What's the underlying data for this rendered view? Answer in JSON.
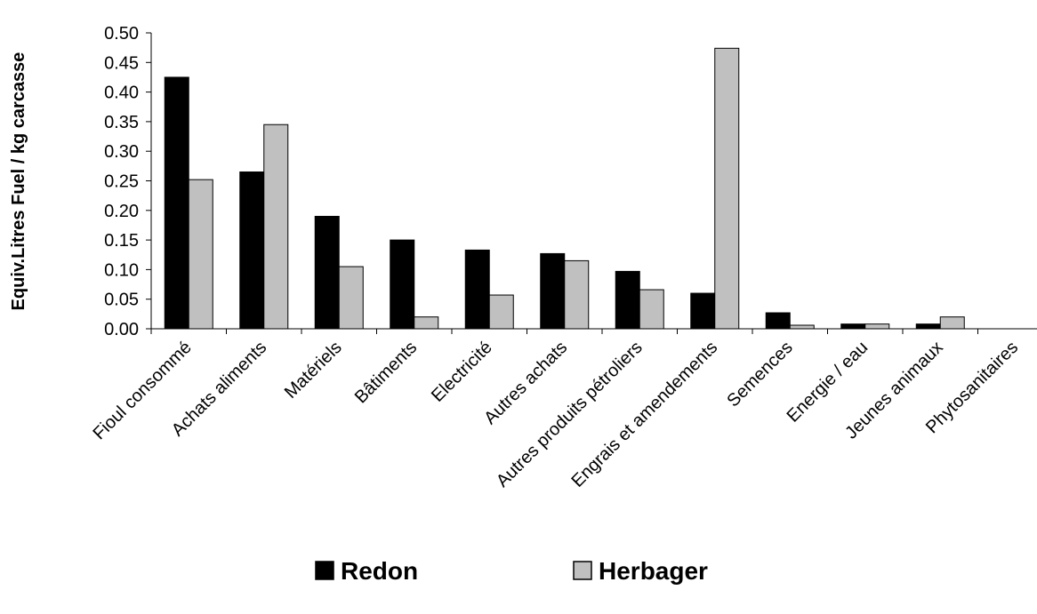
{
  "chart_data": {
    "type": "bar",
    "title": "",
    "xlabel": "",
    "ylabel": "Equiv.Litres Fuel / kg carcasse",
    "ylim": [
      0,
      0.5
    ],
    "yticks": [
      "0.00",
      "0.05",
      "0.10",
      "0.15",
      "0.20",
      "0.25",
      "0.30",
      "0.35",
      "0.40",
      "0.45",
      "0.50"
    ],
    "grid": false,
    "legend_position": "bottom",
    "categories": [
      "Fioul consommé",
      "Achats aliments",
      "Matériels",
      "Bâtiments",
      "Electricité",
      "Autres achats",
      "Autres produits pétroliers",
      "Engrais et amendements",
      "Semences",
      "Energie / eau",
      "Jeunes animaux",
      "Phytosanitaires"
    ],
    "series": [
      {
        "name": "Redon",
        "color": "#000000",
        "values": [
          0.425,
          0.265,
          0.19,
          0.15,
          0.133,
          0.127,
          0.097,
          0.06,
          0.027,
          0.008,
          0.008,
          0.0
        ]
      },
      {
        "name": "Herbager",
        "color": "#c0c0c0",
        "values": [
          0.252,
          0.345,
          0.105,
          0.02,
          0.057,
          0.115,
          0.066,
          0.474,
          0.006,
          0.008,
          0.02,
          0.0
        ]
      }
    ]
  }
}
